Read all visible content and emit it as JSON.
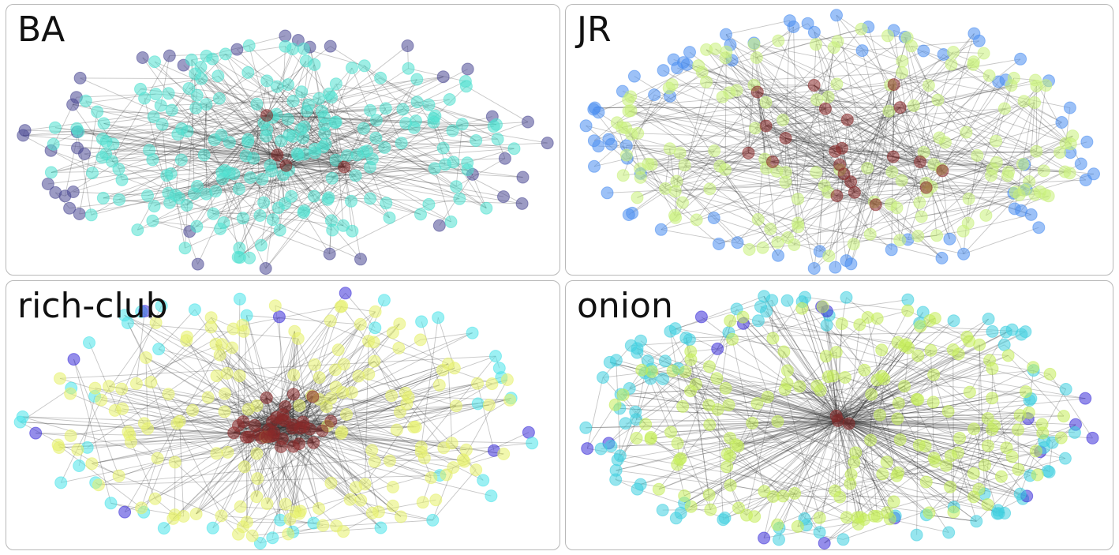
{
  "panels": [
    {
      "id": "ba",
      "label": "BA",
      "nodes": {
        "periphery": 40,
        "middle": 210,
        "core": 4
      },
      "colors": {
        "periphery": "#4b4894",
        "middle": "#4fe0d0",
        "core": "#8a2a2a"
      }
    },
    {
      "id": "jr",
      "label": "JR",
      "nodes": {
        "periphery": 75,
        "middle": 150,
        "core": 22
      },
      "colors": {
        "periphery": "#4b8ef0",
        "middle": "#c8f07a",
        "core": "#8a2a2a"
      }
    },
    {
      "id": "rc",
      "label": "rich-club",
      "nodes": {
        "periphery": 50,
        "middle": 160,
        "core": 35
      },
      "colors": {
        "periphery": "#4ae4ea",
        "middle": "#e6f06a",
        "core": "#8a2a2a"
      }
    },
    {
      "id": "on",
      "label": "onion",
      "nodes": {
        "periphery": 110,
        "middle": 170,
        "core": 3
      },
      "colors": {
        "periphery": "#3fd0e0",
        "middle": "#c4ec5a",
        "core": "#8a2a2a"
      }
    }
  ],
  "accent_colors": {
    "deep_periphery": "#3c2fd8"
  }
}
